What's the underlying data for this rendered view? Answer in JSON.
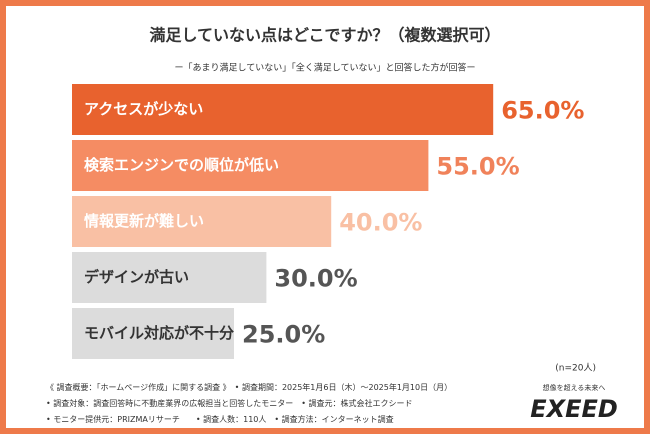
{
  "chart_data": {
    "type": "bar",
    "orientation": "horizontal",
    "title": "満足していない点はどこですか？（複数選択可）",
    "subtitle": "ー「あまり満足していない」「全く満足していない」と回答した方が回答ー",
    "categories": [
      "アクセスが少ない",
      "検索エンジンでの順位が低い",
      "情報更新が難しい",
      "デザインが古い",
      "モバイル対応が不十分"
    ],
    "values": [
      65,
      55,
      40,
      30,
      25
    ],
    "value_labels": [
      "65.0%",
      "55.0%",
      "40.0%",
      "30.0%",
      "25.0%"
    ],
    "colors": [
      "#e8622e",
      "#f58c63",
      "#f9c0a4",
      "#dcdcdc",
      "#dcdcdc"
    ],
    "category_label_colors": [
      "#ffffff",
      "#ffffff",
      "#ffffff",
      "#333333",
      "#333333"
    ],
    "value_label_colors": [
      "#e8622e",
      "#f0825a",
      "#f9c0a4",
      "#555555",
      "#555555"
    ],
    "note": "(n=20人)"
  },
  "footer": {
    "lines": [
      "《 調査概要：「ホームページ作成」に関する調査 》　• 調査期間：2025年1月6日（木）〜2025年1月10日（月）",
      "• 調査対象：調査回答時に不動産業界の広報担当と回答したモニター　• 調査元：株式会社エクシード",
      "• モニター提供元：PRIZMAリサーチ　　• 調査人数：110人　• 調査方法：インターネット調査"
    ]
  },
  "logo": {
    "tagline": "想像を超える未来へ",
    "name": "EXEED"
  }
}
